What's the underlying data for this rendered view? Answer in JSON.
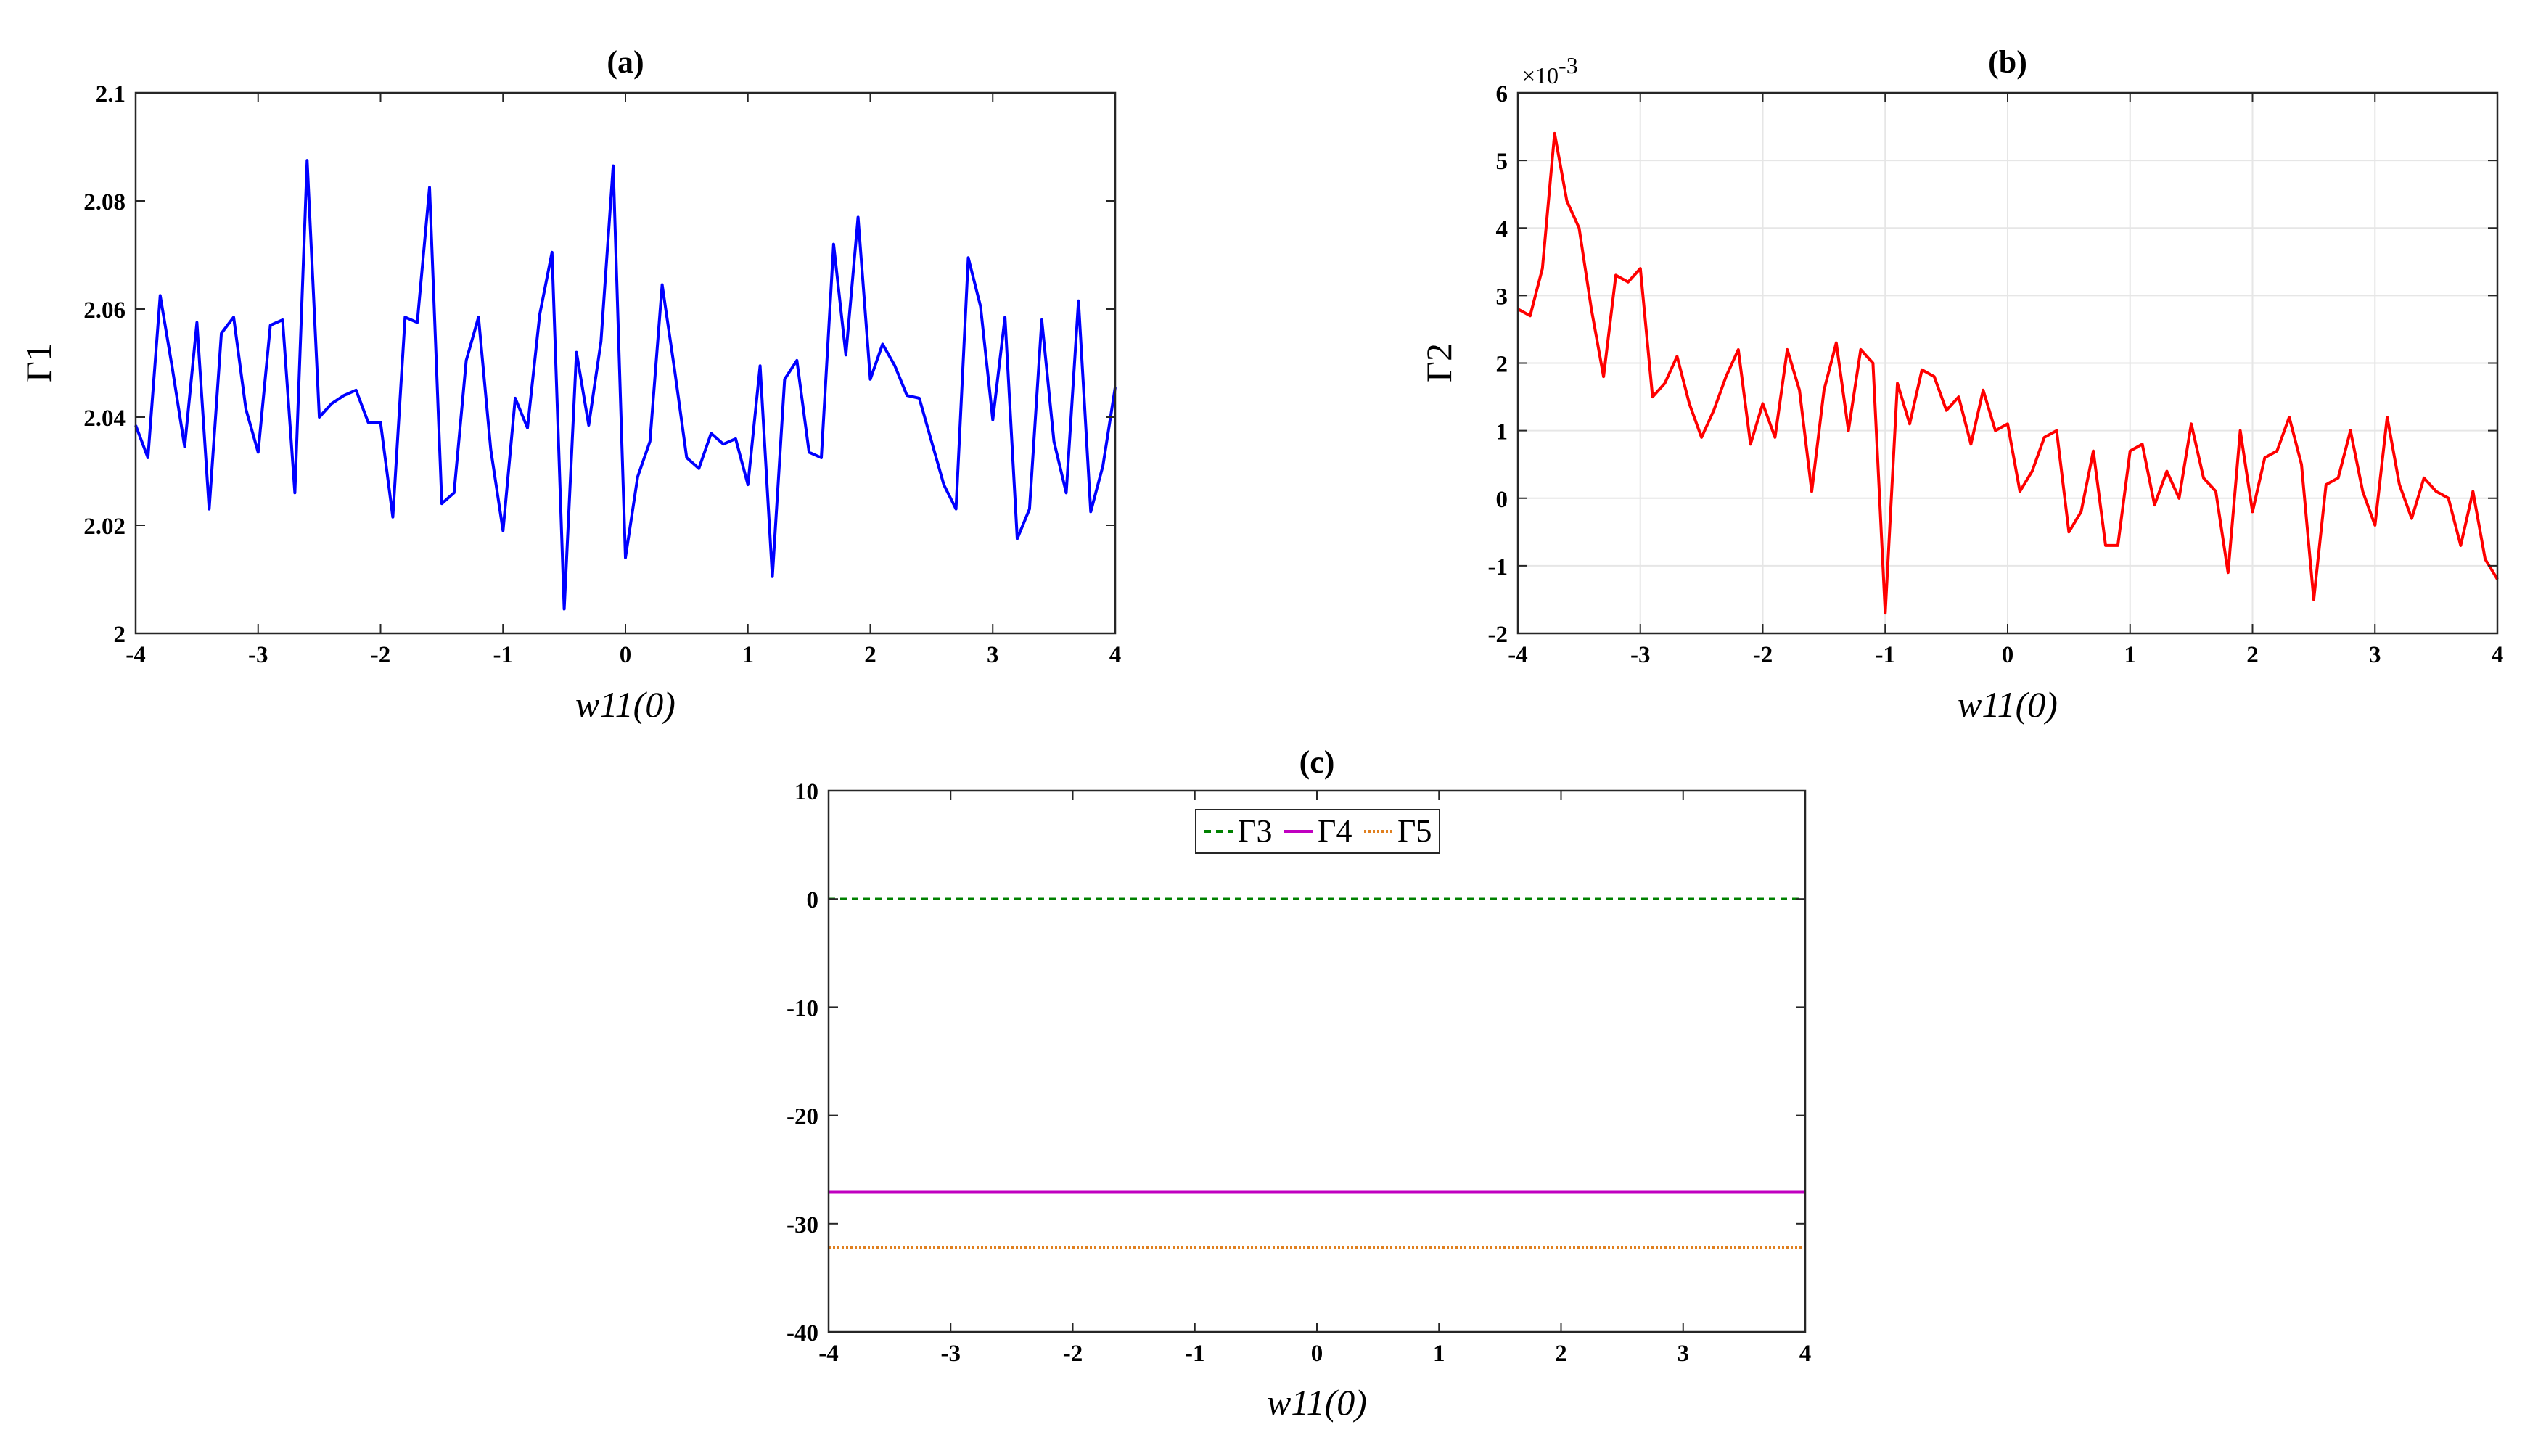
{
  "chart_data": [
    {
      "panel": "(a)",
      "type": "line",
      "title": "(a)",
      "xlabel": "w11(0)",
      "ylabel": "Γ1",
      "xlim": [
        -4,
        4
      ],
      "ylim": [
        2,
        2.1
      ],
      "xticks": [
        "-4",
        "-3",
        "-2",
        "-1",
        "0",
        "1",
        "2",
        "3",
        "4"
      ],
      "yticks": [
        "2",
        "2.02",
        "2.04",
        "2.06",
        "2.08",
        "2.1"
      ],
      "grid": false,
      "series": [
        {
          "color": "#0000ff",
          "x": [
            -4.0,
            -3.9,
            -3.8,
            -3.7,
            -3.6,
            -3.5,
            -3.4,
            -3.3,
            -3.2,
            -3.1,
            -3.0,
            -2.9,
            -2.8,
            -2.7,
            -2.6,
            -2.5,
            -2.4,
            -2.3,
            -2.2,
            -2.1,
            -2.0,
            -1.9,
            -1.8,
            -1.7,
            -1.6,
            -1.5,
            -1.4,
            -1.3,
            -1.2,
            -1.1,
            -1.0,
            -0.9,
            -0.8,
            -0.7,
            -0.6,
            -0.5,
            -0.4,
            -0.3,
            -0.2,
            -0.1,
            0.0,
            0.1,
            0.2,
            0.3,
            0.4,
            0.5,
            0.6,
            0.7,
            0.8,
            0.9,
            1.0,
            1.1,
            1.2,
            1.3,
            1.4,
            1.5,
            1.6,
            1.7,
            1.8,
            1.9,
            2.0,
            2.1,
            2.2,
            2.3,
            2.4,
            2.5,
            2.6,
            2.7,
            2.8,
            2.9,
            3.0,
            3.1,
            3.2,
            3.3,
            3.4,
            3.5,
            3.6,
            3.7,
            3.8,
            3.9,
            4.0
          ],
          "y": [
            2.0385,
            2.0325,
            2.0625,
            2.049,
            2.0345,
            2.0575,
            2.023,
            2.0555,
            2.0585,
            2.0415,
            2.0335,
            2.057,
            2.058,
            2.026,
            2.0875,
            2.04,
            2.0425,
            2.044,
            2.045,
            2.039,
            2.039,
            2.0215,
            2.0585,
            2.0575,
            2.0825,
            2.024,
            2.026,
            2.0505,
            2.0585,
            2.034,
            2.019,
            2.0435,
            2.038,
            2.059,
            2.0705,
            2.0045,
            2.052,
            2.0385,
            2.054,
            2.0865,
            2.014,
            2.029,
            2.0355,
            2.0645,
            2.049,
            2.0325,
            2.0305,
            2.037,
            2.035,
            2.036,
            2.0275,
            2.0495,
            2.0105,
            2.047,
            2.0505,
            2.0335,
            2.0325,
            2.072,
            2.0515,
            2.077,
            2.047,
            2.0535,
            2.0495,
            2.044,
            2.0435,
            2.0355,
            2.0275,
            2.023,
            2.0695,
            2.0605,
            2.0395,
            2.0585,
            2.0175,
            2.023,
            2.058,
            2.0355,
            2.026,
            2.0615,
            2.0225,
            2.031,
            2.0455
          ]
        }
      ]
    },
    {
      "panel": "(b)",
      "type": "line",
      "title": "(b)",
      "xlabel": "w11(0)",
      "ylabel": "Γ2",
      "scale_label": "×10",
      "scale_exponent": "-3",
      "xlim": [
        -4,
        4
      ],
      "ylim": [
        -2,
        6
      ],
      "xticks": [
        "-4",
        "-3",
        "-2",
        "-1",
        "0",
        "1",
        "2",
        "3",
        "4"
      ],
      "yticks": [
        "-2",
        "-1",
        "0",
        "1",
        "2",
        "3",
        "4",
        "5",
        "6"
      ],
      "grid": true,
      "series": [
        {
          "color": "#ff0000",
          "x": [
            -4.0,
            -3.9,
            -3.8,
            -3.7,
            -3.6,
            -3.5,
            -3.4,
            -3.3,
            -3.2,
            -3.1,
            -3.0,
            -2.9,
            -2.8,
            -2.7,
            -2.6,
            -2.5,
            -2.4,
            -2.3,
            -2.2,
            -2.1,
            -2.0,
            -1.9,
            -1.8,
            -1.7,
            -1.6,
            -1.5,
            -1.4,
            -1.3,
            -1.2,
            -1.1,
            -1.0,
            -0.9,
            -0.8,
            -0.7,
            -0.6,
            -0.5,
            -0.4,
            -0.3,
            -0.2,
            -0.1,
            0.0,
            0.1,
            0.2,
            0.3,
            0.4,
            0.5,
            0.6,
            0.7,
            0.8,
            0.9,
            1.0,
            1.1,
            1.2,
            1.3,
            1.4,
            1.5,
            1.6,
            1.7,
            1.8,
            1.9,
            2.0,
            2.1,
            2.2,
            2.3,
            2.4,
            2.5,
            2.6,
            2.7,
            2.8,
            2.9,
            3.0,
            3.1,
            3.2,
            3.3,
            3.4,
            3.5,
            3.6,
            3.7,
            3.8,
            3.9,
            4.0
          ],
          "y": [
            2.8,
            2.7,
            3.4,
            5.4,
            4.4,
            4.0,
            2.8,
            1.8,
            3.3,
            3.2,
            3.4,
            1.5,
            1.7,
            2.1,
            1.4,
            0.9,
            1.3,
            1.8,
            2.2,
            0.8,
            1.4,
            0.9,
            2.2,
            1.6,
            0.1,
            1.6,
            2.3,
            1.0,
            2.2,
            2.0,
            -1.7,
            1.7,
            1.1,
            1.9,
            1.8,
            1.3,
            1.5,
            0.8,
            1.6,
            1.0,
            1.1,
            0.1,
            0.4,
            0.9,
            1.0,
            -0.5,
            -0.2,
            0.7,
            -0.7,
            -0.7,
            0.7,
            0.8,
            -0.1,
            0.4,
            0.0,
            1.1,
            0.3,
            0.1,
            -1.1,
            1.0,
            -0.2,
            0.6,
            0.7,
            1.2,
            0.5,
            -1.5,
            0.2,
            0.3,
            1.0,
            0.1,
            -0.4,
            1.2,
            0.2,
            -0.3,
            0.3,
            0.1,
            0.0,
            -0.7,
            0.1,
            -0.9,
            -1.2
          ]
        }
      ]
    },
    {
      "panel": "(c)",
      "type": "line",
      "title": "(c)",
      "xlabel": "w11(0)",
      "ylabel": "",
      "xlim": [
        -4,
        4
      ],
      "ylim": [
        -40,
        10
      ],
      "xticks": [
        "-4",
        "-3",
        "-2",
        "-1",
        "0",
        "1",
        "2",
        "3",
        "4"
      ],
      "yticks": [
        "-40",
        "-30",
        "-20",
        "-10",
        "0",
        "10"
      ],
      "grid": false,
      "legend": "top-center",
      "series": [
        {
          "name": "Γ3",
          "color": "#008000",
          "style": "dashed",
          "x": [
            -4,
            4
          ],
          "y": [
            0,
            0
          ]
        },
        {
          "name": "Γ4",
          "color": "#c000c0",
          "style": "solid",
          "x": [
            -4,
            4
          ],
          "y": [
            -27.1,
            -27.1
          ]
        },
        {
          "name": "Γ5",
          "color": "#e08020",
          "style": "dotted",
          "x": [
            -4,
            4
          ],
          "y": [
            -32.2,
            -32.2
          ]
        }
      ]
    }
  ]
}
